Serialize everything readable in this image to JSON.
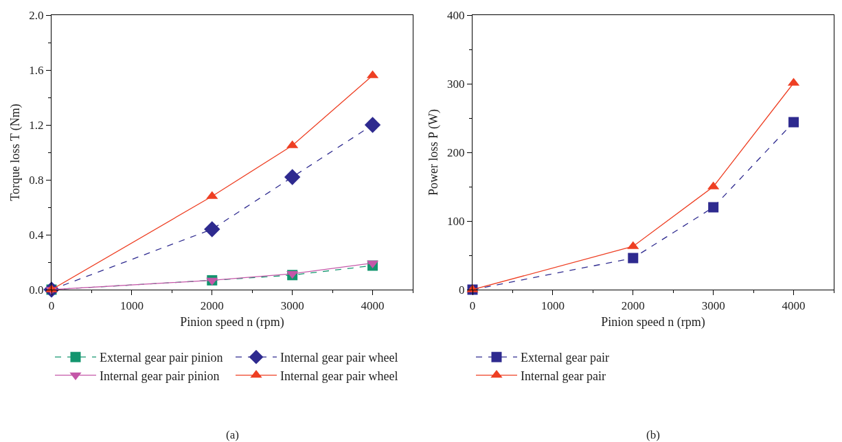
{
  "chart_data": [
    {
      "type": "line",
      "xlabel": "Pinion speed n (rpm)",
      "ylabel": "Torque loss T (Nm)",
      "x": [
        0,
        2000,
        3000,
        4000
      ],
      "xlim": [
        0,
        4500
      ],
      "xticks": [
        0,
        1000,
        2000,
        3000,
        4000
      ],
      "ylim": [
        0,
        2.0
      ],
      "yticks": [
        {
          "value": 0,
          "label": "0.0"
        },
        0.4,
        0.8,
        1.2,
        1.6,
        {
          "value": 2,
          "label": "2.0"
        }
      ],
      "grid": false,
      "legend": "bottom",
      "annotations": [
        "(a)"
      ],
      "series": [
        {
          "name": "External gear pair pinion",
          "color": "#13956e",
          "marker": "square",
          "line_style": "dashed",
          "values": [
            0,
            0.068,
            0.106,
            0.175
          ]
        },
        {
          "name": "Internal gear pair wheel",
          "color": "#2e2a8f",
          "marker": "diamond",
          "line_style": "dashed",
          "values": [
            0,
            0.44,
            0.82,
            1.2
          ]
        },
        {
          "name": "Internal gear pair pinion",
          "color": "#c457a8",
          "marker": "triangle-down",
          "line_style": "solid",
          "values": [
            0,
            0.068,
            0.116,
            0.193
          ]
        },
        {
          "name": "Internal gear pair wheel",
          "color": "#ee3f23",
          "marker": "triangle",
          "line_style": "solid",
          "values": [
            0,
            0.68,
            1.05,
            1.56
          ]
        }
      ]
    },
    {
      "type": "line",
      "xlabel": "Pinion speed n (rpm)",
      "ylabel": "Power loss P (W)",
      "x": [
        0,
        2000,
        3000,
        4000
      ],
      "xlim": [
        0,
        4500
      ],
      "xticks": [
        0,
        1000,
        2000,
        3000,
        4000
      ],
      "ylim": [
        0,
        400
      ],
      "yticks": [
        0,
        100,
        200,
        300,
        400
      ],
      "grid": false,
      "legend": "bottom",
      "annotations": [
        "(b)"
      ],
      "series": [
        {
          "name": "External gear pair",
          "color": "#2e2a8f",
          "marker": "square",
          "line_style": "dashed",
          "values": [
            0,
            46,
            120,
            244
          ]
        },
        {
          "name": "Internal gear pair",
          "color": "#ee3f23",
          "marker": "triangle",
          "line_style": "solid",
          "values": [
            0,
            63,
            150,
            301
          ]
        }
      ]
    }
  ]
}
